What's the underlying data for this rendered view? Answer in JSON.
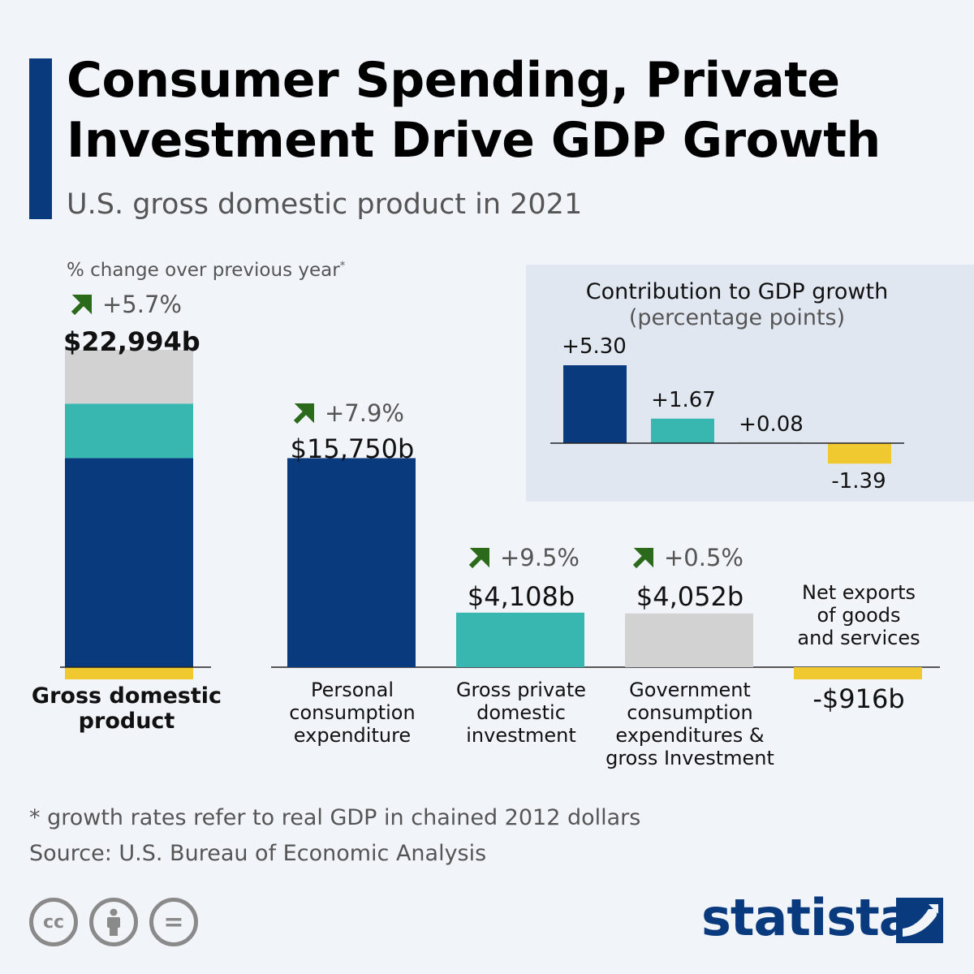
{
  "title_line1": "Consumer Spending, Private",
  "title_line2": "Investment Drive GDP Growth",
  "subtitle": "U.S. gross domestic product in 2021",
  "change_note": "% change over previous year",
  "change_note_mark": "*",
  "colors": {
    "navy": "#0a3a7e",
    "teal": "#38b7b1",
    "gray": "#d2d2d2",
    "yellow": "#f0c930",
    "arrow_green": "#2b6a1a",
    "brand": "#0a3a7e"
  },
  "chart_data": [
    {
      "type": "bar",
      "unit": "$b",
      "categories": [
        "Gross domestic product",
        "Personal consumption expenditure",
        "Gross private domestic investment",
        "Government consumption expenditures & gross Investment",
        "Net exports of goods and services"
      ],
      "values": [
        22994,
        15750,
        4108,
        4052,
        -916
      ],
      "value_labels": [
        "$22,994b",
        "$15,750b",
        "$4,108b",
        "$4,052b",
        "-$916b"
      ],
      "growth_labels": [
        "+5.7%",
        "+7.9%",
        "+9.5%",
        "+0.5%",
        ""
      ],
      "growth_pct": [
        5.7,
        7.9,
        9.5,
        0.5,
        null
      ],
      "gdp_stack": [
        {
          "component": "Personal consumption expenditure",
          "value": 15750,
          "color": "#0a3a7e"
        },
        {
          "component": "Gross private domestic investment",
          "value": 4108,
          "color": "#38b7b1"
        },
        {
          "component": "Government consumption expenditures & gross Investment",
          "value": 4052,
          "color": "#d2d2d2"
        },
        {
          "component": "Net exports of goods and services",
          "value": -916,
          "color": "#f0c930"
        }
      ]
    },
    {
      "type": "bar",
      "title": "Contribution to GDP growth",
      "subtitle": "(percentage points)",
      "categories": [
        "Personal consumption expenditure",
        "Gross private domestic investment",
        "Government consumption expenditures & gross Investment",
        "Net exports of goods and services"
      ],
      "values": [
        5.3,
        1.67,
        0.08,
        -1.39
      ],
      "value_labels": [
        "+5.30",
        "+1.67",
        "+0.08",
        "-1.39"
      ]
    }
  ],
  "category_labels": {
    "gdp_line1": "Gross domestic",
    "gdp_line2": "product",
    "pce_line1": "Personal",
    "pce_line2": "consumption",
    "pce_line3": "expenditure",
    "gpdi_line1": "Gross private",
    "gpdi_line2": "domestic",
    "gpdi_line3": "investment",
    "gov_line1": "Government",
    "gov_line2": "consumption",
    "gov_line3": "expenditures &",
    "gov_line4": "gross Investment",
    "nx_line1": "Net exports",
    "nx_line2": "of goods",
    "nx_line3": "and services"
  },
  "footnote": "* growth rates refer to real GDP in chained 2012 dollars",
  "source": "Source: U.S. Bureau of Economic Analysis",
  "license_icons": [
    "cc-icon",
    "attribution-icon",
    "no-derivatives-icon"
  ],
  "license_glyphs": {
    "cc": "cc",
    "nd": "="
  },
  "brand": "statista"
}
